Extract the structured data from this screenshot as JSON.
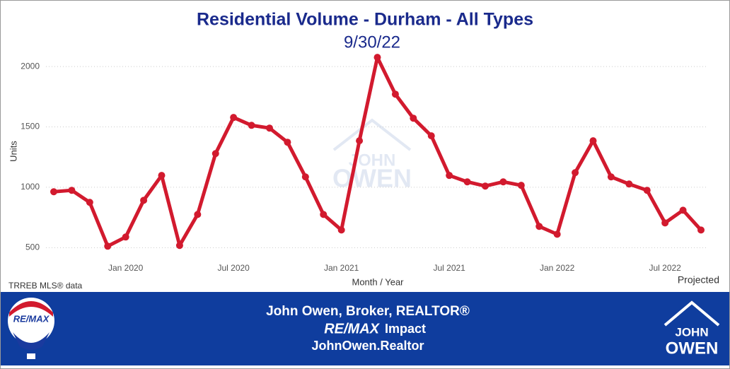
{
  "chart_data": {
    "type": "line",
    "title": "Residential Volume - Durham - All Types",
    "subtitle": "9/30/22",
    "y_label": "Units",
    "x_label": "Month / Year",
    "source": "TRREB MLS® data",
    "annotation": "Projected",
    "watermark": [
      "JOHN",
      "OWEN"
    ],
    "x": [
      "2019-09",
      "2019-10",
      "2019-11",
      "2019-12",
      "2020-01",
      "2020-02",
      "2020-03",
      "2020-04",
      "2020-05",
      "2020-06",
      "2020-07",
      "2020-08",
      "2020-09",
      "2020-10",
      "2020-11",
      "2020-12",
      "2021-01",
      "2021-02",
      "2021-03",
      "2021-04",
      "2021-05",
      "2021-06",
      "2021-07",
      "2021-08",
      "2021-09",
      "2021-10",
      "2021-11",
      "2021-12",
      "2022-01",
      "2022-02",
      "2022-03",
      "2022-04",
      "2022-05",
      "2022-06",
      "2022-07",
      "2022-08",
      "2022-09"
    ],
    "series": [
      {
        "name": "Units",
        "color": "#d21a2e",
        "values": [
          963,
          975,
          875,
          512,
          588,
          892,
          1098,
          518,
          775,
          1279,
          1578,
          1513,
          1490,
          1373,
          1086,
          775,
          646,
          1385,
          2076,
          1771,
          1572,
          1426,
          1098,
          1045,
          1010,
          1045,
          1016,
          676,
          611,
          1121,
          1385,
          1086,
          1027,
          975,
          705,
          810,
          646
        ]
      }
    ],
    "xticks": [
      {
        "value": "2020-01",
        "label": "Jan 2020"
      },
      {
        "value": "2020-07",
        "label": "Jul 2020"
      },
      {
        "value": "2021-01",
        "label": "Jan 2021"
      },
      {
        "value": "2021-07",
        "label": "Jul 2021"
      },
      {
        "value": "2022-01",
        "label": "Jan 2022"
      },
      {
        "value": "2022-07",
        "label": "Jul 2022"
      }
    ],
    "ylim": [
      420,
      2100
    ],
    "yticks": [
      500,
      1000,
      1500,
      2000
    ],
    "grid": true
  },
  "footer": {
    "line1": "John Owen, Broker, REALTOR®",
    "brand": "RE/MAX",
    "brand_suffix": "Impact",
    "website": "JohnOwen.Realtor",
    "left_logo": "RE/MAX",
    "right_logo": [
      "JOHN",
      "OWEN"
    ],
    "background": "#0f3d9e"
  }
}
